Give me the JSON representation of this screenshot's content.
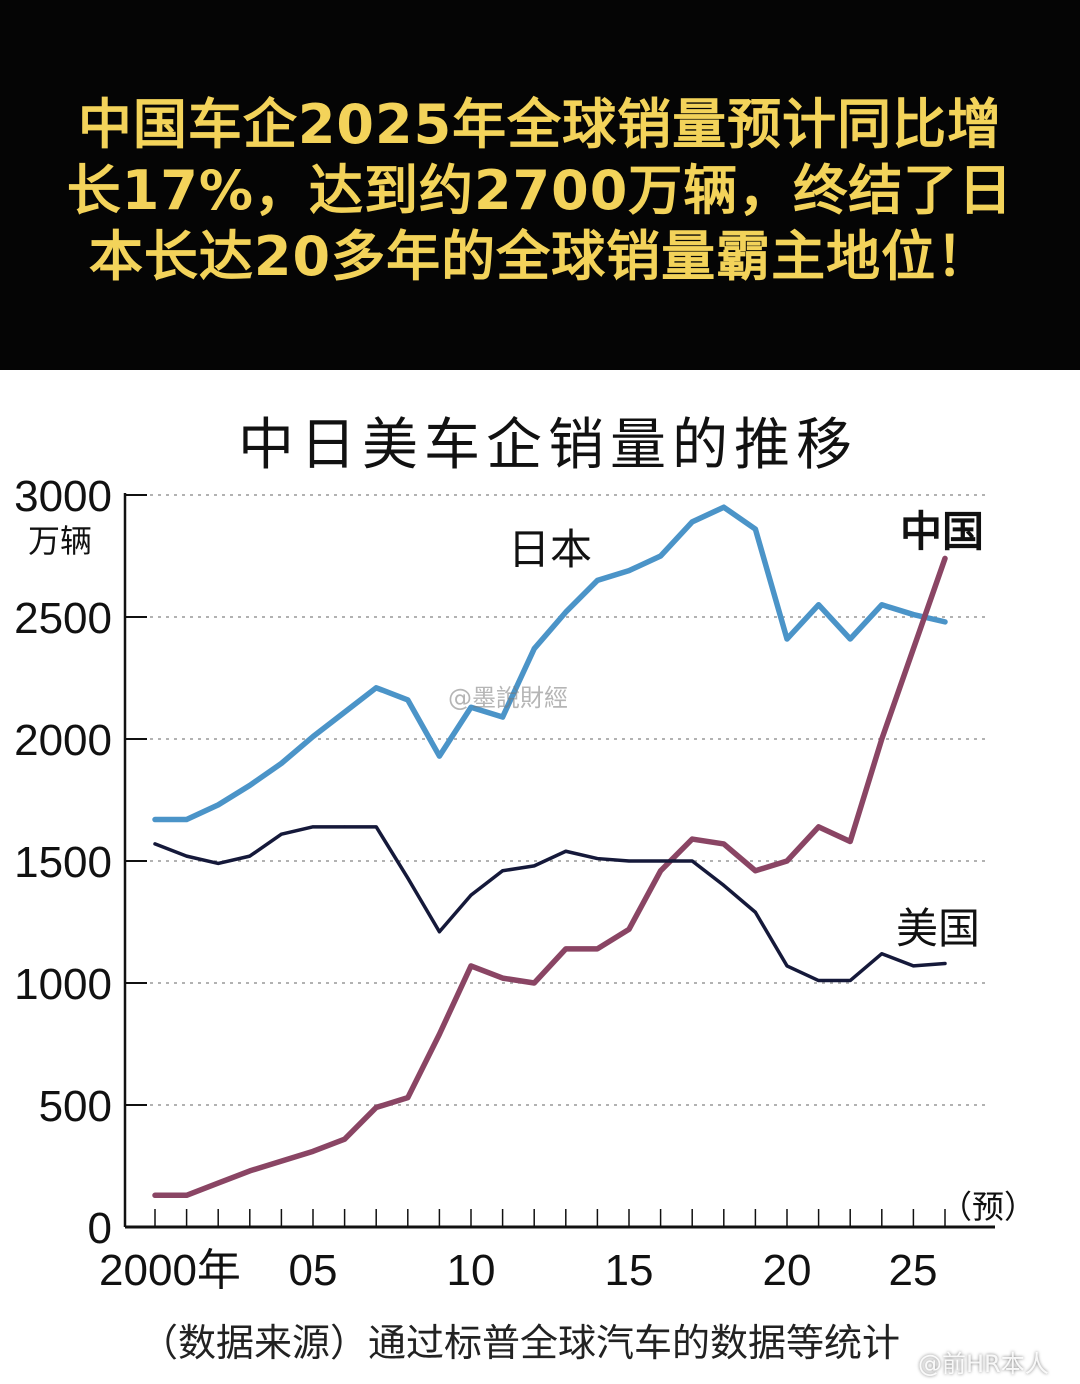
{
  "headline": "中国车企2025年全球销量预计同比增长17%，达到约2700万辆，终结了日本长达20多年的全球销量霸主地位！",
  "watermarks": [
    "@墨說財經",
    "@前HR本人"
  ],
  "source_note": "（数据来源）通过标普全球汽车的数据等统计",
  "colors": {
    "header_bg": "#050505",
    "headline": "#f3d35a",
    "japan": "#4b94c8",
    "china": "#8a4564",
    "usa": "#15193a"
  },
  "chart_data": {
    "type": "line",
    "title": "中日美车企销量的推移",
    "ylabel": "万辆",
    "ylim": [
      0,
      3000
    ],
    "yticks": [
      "0",
      "500",
      "1000",
      "1500",
      "2000",
      "2500",
      "3000"
    ],
    "xlim": [
      2000,
      2025
    ],
    "xtick_labels": [
      "2000年",
      "05",
      "10",
      "15",
      "20",
      "25"
    ],
    "forecast_label": "（预）",
    "grid": "horizontal dotted",
    "x": [
      2000,
      2001,
      2002,
      2003,
      2004,
      2005,
      2006,
      2007,
      2008,
      2009,
      2010,
      2011,
      2012,
      2013,
      2014,
      2015,
      2016,
      2017,
      2018,
      2019,
      2020,
      2021,
      2022,
      2023,
      2024,
      2025
    ],
    "series": [
      {
        "name": "日本",
        "color": "#4b94c8",
        "values": [
          1670,
          1670,
          1730,
          1810,
          1900,
          2010,
          2110,
          2210,
          2160,
          1930,
          2130,
          2090,
          2370,
          2520,
          2650,
          2690,
          2750,
          2890,
          2950,
          2860,
          2410,
          2550,
          2410,
          2550,
          2510,
          2480
        ]
      },
      {
        "name": "中国",
        "color": "#8a4564",
        "values": [
          130,
          130,
          180,
          230,
          270,
          310,
          360,
          490,
          530,
          790,
          1070,
          1020,
          1000,
          1140,
          1140,
          1220,
          1460,
          1590,
          1570,
          1460,
          1500,
          1640,
          1580,
          2000,
          2370,
          2740
        ]
      },
      {
        "name": "美国",
        "color": "#15193a",
        "values": [
          1570,
          1520,
          1490,
          1520,
          1610,
          1640,
          1640,
          1640,
          1430,
          1210,
          1360,
          1460,
          1480,
          1540,
          1510,
          1500,
          1500,
          1500,
          1400,
          1290,
          1070,
          1010,
          1010,
          1120,
          1070,
          1080
        ]
      }
    ]
  }
}
